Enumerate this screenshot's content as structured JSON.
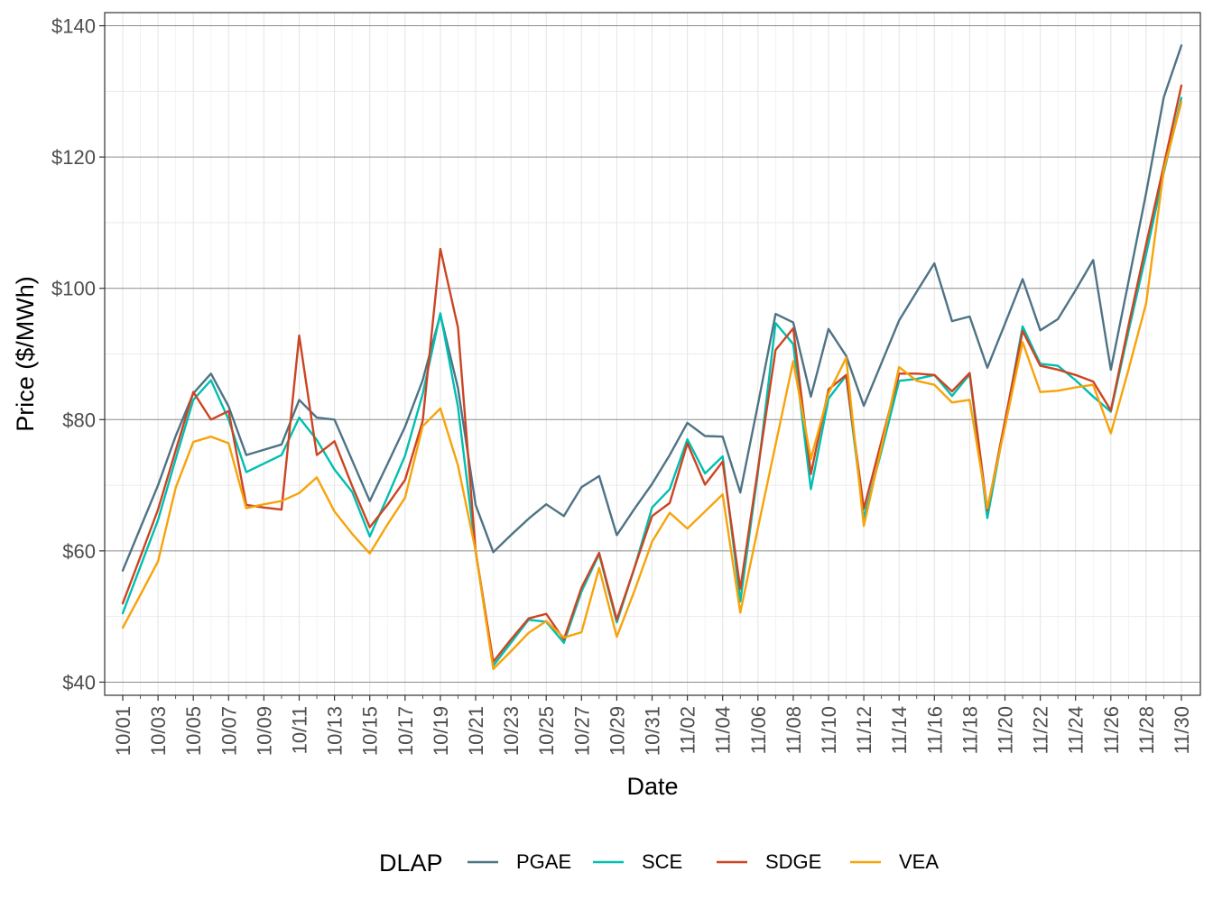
{
  "chart_data": {
    "type": "line",
    "xlabel": "Date",
    "ylabel": "Price ($/MWh)",
    "ylim": [
      38,
      142
    ],
    "yticks": [
      40,
      60,
      80,
      100,
      120,
      140
    ],
    "ytick_labels": [
      "$40",
      "$60",
      "$80",
      "$100",
      "$120",
      "$140"
    ],
    "x": [
      "10/01",
      "10/02",
      "10/03",
      "10/04",
      "10/05",
      "10/06",
      "10/07",
      "10/08",
      "10/09",
      "10/10",
      "10/11",
      "10/12",
      "10/13",
      "10/14",
      "10/15",
      "10/16",
      "10/17",
      "10/18",
      "10/19",
      "10/20",
      "10/21",
      "10/22",
      "10/23",
      "10/24",
      "10/25",
      "10/26",
      "10/27",
      "10/28",
      "10/29",
      "10/30",
      "10/31",
      "11/01",
      "11/02",
      "11/03",
      "11/04",
      "11/05",
      "11/06",
      "11/07",
      "11/08",
      "11/09",
      "11/10",
      "11/11",
      "11/12",
      "11/13",
      "11/14",
      "11/15",
      "11/16",
      "11/17",
      "11/18",
      "11/19",
      "11/20",
      "11/21",
      "11/22",
      "11/23",
      "11/24",
      "11/25",
      "11/26",
      "11/27",
      "11/28",
      "11/29",
      "11/30"
    ],
    "xtick_labels": [
      "10/01",
      "10/03",
      "10/05",
      "10/07",
      "10/09",
      "10/11",
      "10/13",
      "10/15",
      "10/17",
      "10/19",
      "10/21",
      "10/23",
      "10/25",
      "10/27",
      "10/29",
      "10/31",
      "11/02",
      "11/04",
      "11/06",
      "11/08",
      "11/10",
      "11/12",
      "11/14",
      "11/16",
      "11/18",
      "11/20",
      "11/22",
      "11/24",
      "11/26",
      "11/28",
      "11/30"
    ],
    "legend_title": "DLAP",
    "legend_position": "bottom",
    "grid": true,
    "series": [
      {
        "name": "PGAE",
        "color": "#4e7385",
        "values": [
          57.0,
          63.5,
          70.0,
          77.5,
          84.0,
          87.0,
          82.0,
          74.6,
          75.4,
          76.2,
          83.0,
          80.3,
          80.0,
          73.8,
          67.6,
          73.2,
          78.9,
          86.0,
          96.0,
          84.8,
          67.0,
          59.8,
          62.4,
          64.9,
          67.1,
          65.3,
          69.7,
          71.4,
          62.4,
          66.4,
          70.2,
          74.6,
          79.5,
          77.5,
          77.4,
          68.9,
          82.3,
          96.1,
          94.8,
          83.5,
          93.8,
          89.7,
          82.1,
          88.6,
          95.1,
          99.5,
          103.8,
          95.0,
          95.7,
          87.9,
          94.6,
          101.4,
          93.6,
          95.3,
          99.7,
          104.3,
          87.6,
          101.0,
          114.5,
          129.1,
          137.0
        ]
      },
      {
        "name": "SCE",
        "color": "#00bfb0",
        "values": [
          50.5,
          57.6,
          64.7,
          74.0,
          83.0,
          86.0,
          80.0,
          72.0,
          73.3,
          74.6,
          80.3,
          76.9,
          72.4,
          69.0,
          62.2,
          68.2,
          74.5,
          83.9,
          96.2,
          81.9,
          59.9,
          42.5,
          46.0,
          49.5,
          49.2,
          46.0,
          53.8,
          59.5,
          49.1,
          57.4,
          66.6,
          69.4,
          77.0,
          71.8,
          74.4,
          52.3,
          72.0,
          94.7,
          91.5,
          69.4,
          83.2,
          86.7,
          65.0,
          75.2,
          85.9,
          86.2,
          86.8,
          83.6,
          86.9,
          65.0,
          79.5,
          94.2,
          88.5,
          88.2,
          86.0,
          83.5,
          81.2,
          93.4,
          105.2,
          117.6,
          129.0
        ]
      },
      {
        "name": "SDGE",
        "color": "#cc4422",
        "values": [
          52.0,
          59.1,
          66.3,
          75.3,
          84.2,
          80.0,
          81.3,
          67.0,
          66.6,
          66.3,
          92.8,
          74.6,
          76.7,
          69.9,
          63.6,
          67.0,
          70.8,
          79.8,
          106.0,
          94.0,
          60.0,
          43.1,
          46.5,
          49.7,
          50.4,
          46.5,
          54.4,
          59.7,
          49.5,
          57.4,
          65.3,
          67.3,
          76.4,
          70.1,
          73.6,
          54.2,
          72.5,
          90.6,
          93.9,
          71.7,
          84.6,
          86.8,
          66.4,
          76.7,
          87.0,
          87.0,
          86.8,
          84.3,
          87.1,
          66.2,
          79.8,
          93.5,
          88.2,
          87.6,
          86.8,
          85.8,
          81.4,
          94.3,
          106.7,
          118.7,
          130.9
        ]
      },
      {
        "name": "VEA",
        "color": "#f7a30a",
        "values": [
          48.3,
          53.3,
          58.4,
          69.6,
          76.6,
          77.4,
          76.4,
          66.5,
          67.1,
          67.6,
          68.8,
          71.2,
          66.0,
          62.6,
          59.6,
          64.0,
          68.1,
          79.0,
          81.7,
          73.0,
          60.0,
          42.0,
          44.7,
          47.5,
          49.3,
          46.8,
          47.6,
          57.4,
          46.9,
          53.9,
          61.4,
          65.8,
          63.4,
          66.0,
          68.6,
          50.6,
          63.5,
          76.2,
          88.9,
          74.0,
          84.0,
          89.4,
          63.8,
          75.8,
          88.0,
          85.9,
          85.3,
          82.6,
          83.0,
          66.5,
          78.9,
          91.8,
          84.2,
          84.4,
          84.9,
          85.3,
          77.9,
          87.6,
          97.7,
          118.0,
          128.4
        ]
      }
    ]
  }
}
